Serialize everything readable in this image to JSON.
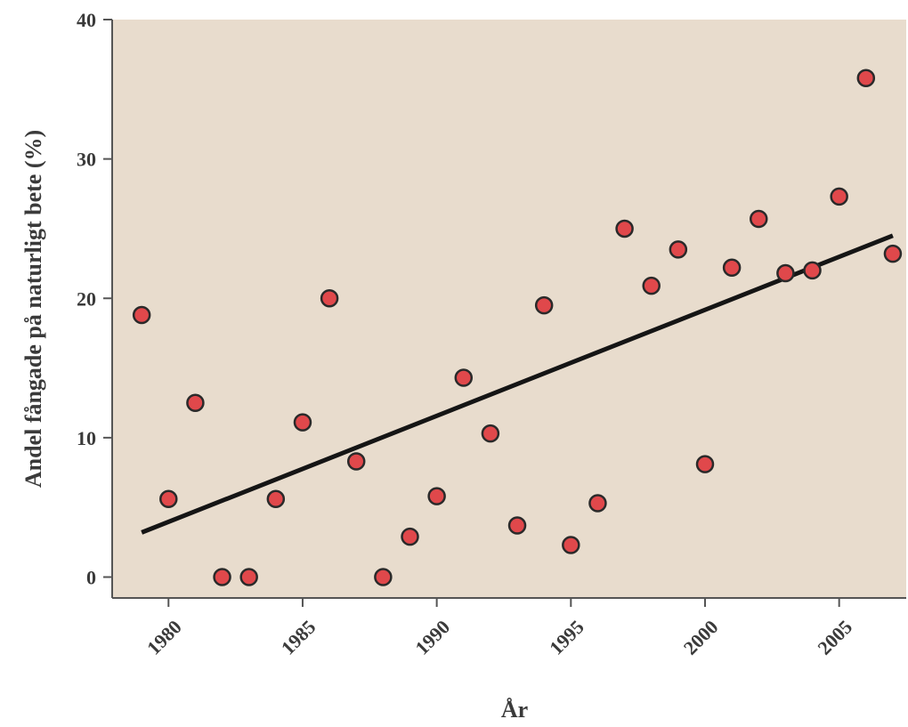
{
  "chart_data": {
    "type": "scatter",
    "xlabel": "År",
    "ylabel": "Andel fångade på naturligt bete (%)",
    "xlim": [
      1977.9,
      2007.5
    ],
    "ylim": [
      -1.5,
      40
    ],
    "x_ticks": [
      1980,
      1985,
      1990,
      1995,
      2000,
      2005
    ],
    "y_ticks": [
      0,
      10,
      20,
      30,
      40
    ],
    "grid": false,
    "legend": "none",
    "colors": {
      "plot_background": "#e8dccd",
      "point_fill": "#e0484b",
      "point_stroke": "#2a2a2a",
      "line": "#151515",
      "axis": "#555555"
    },
    "series": [
      {
        "points": [
          [
            1979,
            18.8
          ],
          [
            1980,
            5.6
          ],
          [
            1981,
            12.5
          ],
          [
            1982,
            0.0
          ],
          [
            1983,
            0.0
          ],
          [
            1984,
            5.6
          ],
          [
            1985,
            11.1
          ],
          [
            1986,
            20.0
          ],
          [
            1987,
            8.3
          ],
          [
            1988,
            0.0
          ],
          [
            1989,
            2.9
          ],
          [
            1990,
            5.8
          ],
          [
            1991,
            14.3
          ],
          [
            1992,
            10.3
          ],
          [
            1993,
            3.7
          ],
          [
            1994,
            19.5
          ],
          [
            1995,
            2.3
          ],
          [
            1996,
            5.3
          ],
          [
            1997,
            25.0
          ],
          [
            1998,
            20.9
          ],
          [
            1999,
            23.5
          ],
          [
            2000,
            8.1
          ],
          [
            2001,
            22.2
          ],
          [
            2002,
            25.7
          ],
          [
            2003,
            21.8
          ],
          [
            2004,
            22.0
          ],
          [
            2005,
            27.3
          ],
          [
            2006,
            35.8
          ],
          [
            2007,
            23.2
          ]
        ]
      }
    ],
    "trendline": {
      "x": [
        1979,
        2007
      ],
      "y": [
        3.2,
        24.5
      ]
    }
  }
}
